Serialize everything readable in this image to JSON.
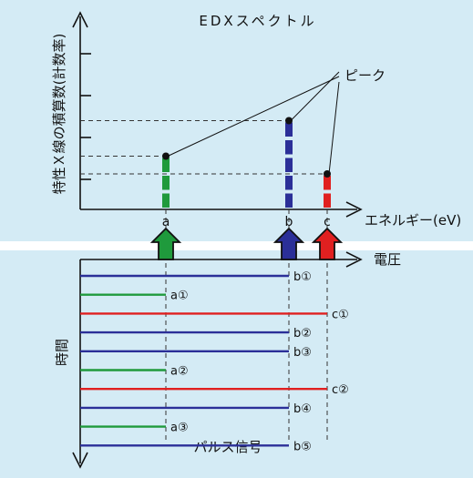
{
  "spectrum": {
    "title": "EDXスペクトル",
    "y_axis_label": "特性Ｘ線の積算数(計数率)",
    "x_axis_label": "エネルギー(eV)",
    "peak_label": "ピーク",
    "peaks": [
      {
        "id": "a",
        "label": "a",
        "color": "#1f9a3c",
        "count": 3
      },
      {
        "id": "b",
        "label": "b",
        "color": "#2b2f98",
        "count": 5
      },
      {
        "id": "c",
        "label": "c",
        "color": "#e02020",
        "count": 2
      }
    ]
  },
  "arrows": [
    {
      "peak": "a",
      "color": "#1f9a3c"
    },
    {
      "peak": "b",
      "color": "#2b2f98"
    },
    {
      "peak": "c",
      "color": "#e02020"
    }
  ],
  "pulse": {
    "voltage_label": "電圧",
    "time_label": "時間",
    "caption": "パルス信号",
    "signals": [
      {
        "peak": "b",
        "label": "b①"
      },
      {
        "peak": "a",
        "label": "a①"
      },
      {
        "peak": "c",
        "label": "c①"
      },
      {
        "peak": "b",
        "label": "b②"
      },
      {
        "peak": "b",
        "label": "b③"
      },
      {
        "peak": "a",
        "label": "a②"
      },
      {
        "peak": "c",
        "label": "c②"
      },
      {
        "peak": "b",
        "label": "b④"
      },
      {
        "peak": "a",
        "label": "a③"
      },
      {
        "peak": "b",
        "label": "b⑤"
      }
    ]
  }
}
